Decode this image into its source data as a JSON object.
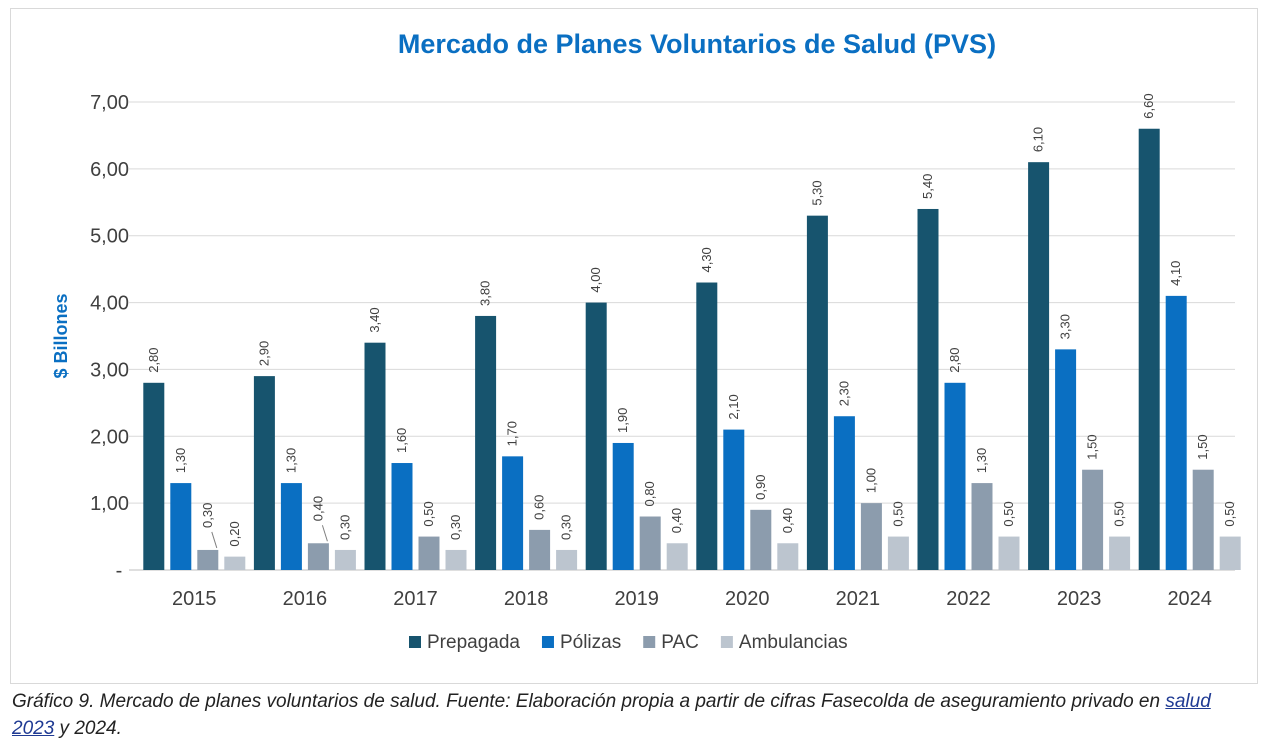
{
  "chart_data": {
    "type": "bar",
    "title": "Mercado de Planes Voluntarios de Salud (PVS)",
    "ylabel": "$ Billones",
    "xlabel": "",
    "ylim": [
      0,
      7
    ],
    "yticks": [
      {
        "value": 0,
        "label": "-"
      },
      {
        "value": 1,
        "label": "1,00"
      },
      {
        "value": 2,
        "label": "2,00"
      },
      {
        "value": 3,
        "label": "3,00"
      },
      {
        "value": 4,
        "label": "4,00"
      },
      {
        "value": 5,
        "label": "5,00"
      },
      {
        "value": 6,
        "label": "6,00"
      },
      {
        "value": 7,
        "label": "7,00"
      }
    ],
    "grid": true,
    "legend_position": "bottom",
    "categories": [
      "2015",
      "2016",
      "2017",
      "2018",
      "2019",
      "2020",
      "2021",
      "2022",
      "2023",
      "2024"
    ],
    "series": [
      {
        "name": "Prepagada",
        "color": "#17546e",
        "values": [
          2.8,
          2.9,
          3.4,
          3.8,
          4.0,
          4.3,
          5.3,
          5.4,
          6.1,
          6.6
        ],
        "labels": [
          "2,80",
          "2,90",
          "3,40",
          "3,80",
          "4,00",
          "4,30",
          "5,30",
          "5,40",
          "6,10",
          "6,60"
        ]
      },
      {
        "name": "Pólizas",
        "color": "#0a6fc2",
        "values": [
          1.3,
          1.3,
          1.6,
          1.7,
          1.9,
          2.1,
          2.3,
          2.8,
          3.3,
          4.1
        ],
        "labels": [
          "1,30",
          "1,30",
          "1,60",
          "1,70",
          "1,90",
          "2,10",
          "2,30",
          "2,80",
          "3,30",
          "4,10"
        ]
      },
      {
        "name": "PAC",
        "color": "#8c9cad",
        "values": [
          0.3,
          0.4,
          0.5,
          0.6,
          0.8,
          0.9,
          1.0,
          1.3,
          1.5,
          1.5
        ],
        "labels": [
          "0,30",
          "0,40",
          "0,50",
          "0,60",
          "0,80",
          "0,90",
          "1,00",
          "1,30",
          "1,50",
          "1,50"
        ]
      },
      {
        "name": "Ambulancias",
        "color": "#bcc5cf",
        "values": [
          0.2,
          0.3,
          0.3,
          0.3,
          0.4,
          0.4,
          0.5,
          0.5,
          0.5,
          0.5
        ],
        "labels": [
          "0,20",
          "0,30",
          "0,30",
          "0,30",
          "0,40",
          "0,40",
          "0,50",
          "0,50",
          "0,50",
          "0,50"
        ]
      }
    ]
  },
  "colors": {
    "title": "#0a6fc2",
    "ylabel": "#0a6fc2",
    "grid": "#d9d9d9",
    "text": "#404040"
  },
  "caption": {
    "prefix": "Gráfico 9.  Mercado de planes voluntarios de salud.  Fuente: Elaboración propia a partir de cifras Fasecolda de aseguramiento privado en ",
    "link_text": "salud  2023",
    "suffix": " y 2024."
  }
}
